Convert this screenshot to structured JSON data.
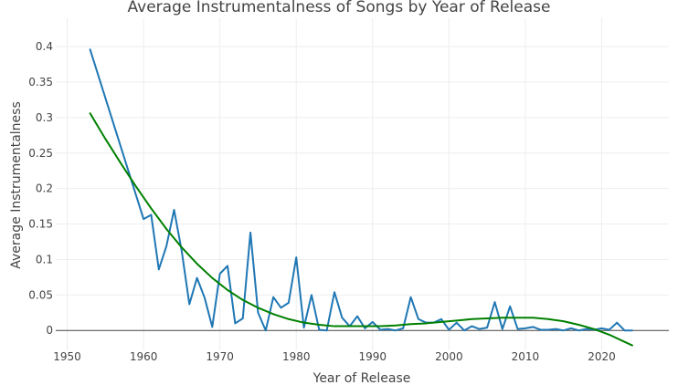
{
  "chart_data": {
    "type": "line",
    "title": "Average Instrumentalness of Songs by Year of Release",
    "xlabel": "Year of Release",
    "ylabel": "Average Instrumentalness",
    "xlim": [
      1948.5,
      2028.8
    ],
    "ylim": [
      -0.028,
      0.44
    ],
    "grid": true,
    "x_ticks": [
      1950,
      1960,
      1970,
      1980,
      1990,
      2000,
      2010,
      2020
    ],
    "x_tick_labels": [
      "1950",
      "1960",
      "1970",
      "1980",
      "1990",
      "2000",
      "2010",
      "2020"
    ],
    "y_ticks": [
      0,
      0.05,
      0.1,
      0.15,
      0.2,
      0.25,
      0.3,
      0.35,
      0.4
    ],
    "y_tick_labels": [
      "0",
      "0.05",
      "0.1",
      "0.15",
      "0.2",
      "0.25",
      "0.3",
      "0.35",
      "0.4"
    ],
    "series": [
      {
        "color": "#1f77b4",
        "x": [
          1953,
          1960,
          1961,
          1962,
          1963,
          1964,
          1965,
          1966,
          1967,
          1968,
          1969,
          1970,
          1971,
          1972,
          1973,
          1974,
          1975,
          1976,
          1977,
          1978,
          1979,
          1980,
          1981,
          1982,
          1983,
          1984,
          1985,
          1986,
          1987,
          1988,
          1989,
          1990,
          1991,
          1992,
          1993,
          1994,
          1995,
          1996,
          1997,
          1998,
          1999,
          2000,
          2001,
          2002,
          2003,
          2004,
          2005,
          2006,
          2007,
          2008,
          2009,
          2010,
          2011,
          2012,
          2013,
          2014,
          2015,
          2016,
          2017,
          2018,
          2019,
          2020,
          2021,
          2022,
          2023,
          2024
        ],
        "values": [
          0.396,
          0.157,
          0.163,
          0.086,
          0.119,
          0.17,
          0.112,
          0.037,
          0.074,
          0.046,
          0.005,
          0.08,
          0.091,
          0.01,
          0.017,
          0.138,
          0.025,
          0.0,
          0.047,
          0.032,
          0.039,
          0.103,
          0.004,
          0.05,
          0.001,
          0.0,
          0.054,
          0.018,
          0.006,
          0.02,
          0.003,
          0.012,
          0.001,
          0.002,
          0.0,
          0.003,
          0.047,
          0.016,
          0.011,
          0.011,
          0.016,
          0.001,
          0.011,
          0.0,
          0.006,
          0.002,
          0.004,
          0.04,
          0.002,
          0.034,
          0.002,
          0.003,
          0.005,
          0.001,
          0.001,
          0.002,
          0.0,
          0.003,
          0.0,
          0.002,
          0.001,
          0.003,
          0.001,
          0.011,
          0.0,
          0.0
        ]
      },
      {
        "color": "#008000",
        "x": [
          1953,
          1955,
          1957,
          1959,
          1961,
          1963,
          1965,
          1967,
          1969,
          1971,
          1973,
          1975,
          1977,
          1979,
          1981,
          1983,
          1985,
          1987,
          1989,
          1991,
          1993,
          1995,
          1997,
          1999,
          2001,
          2003,
          2005,
          2007,
          2009,
          2011,
          2013,
          2015,
          2017,
          2019,
          2021,
          2023,
          2024
        ],
        "values": [
          0.306,
          0.27,
          0.236,
          0.203,
          0.172,
          0.143,
          0.117,
          0.094,
          0.074,
          0.057,
          0.043,
          0.032,
          0.023,
          0.016,
          0.011,
          0.008,
          0.006,
          0.006,
          0.006,
          0.006,
          0.007,
          0.009,
          0.01,
          0.012,
          0.014,
          0.016,
          0.017,
          0.018,
          0.018,
          0.018,
          0.016,
          0.013,
          0.008,
          0.002,
          -0.006,
          -0.016,
          -0.021
        ]
      }
    ]
  }
}
